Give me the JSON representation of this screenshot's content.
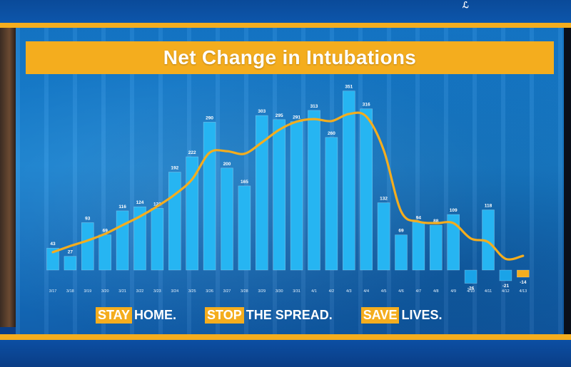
{
  "chart_data": {
    "type": "bar",
    "title": "Net Change in Intubations",
    "categories": [
      "3/17",
      "3/18",
      "3/19",
      "3/20",
      "3/21",
      "3/22",
      "3/23",
      "3/24",
      "3/25",
      "3/26",
      "3/27",
      "3/28",
      "3/29",
      "3/30",
      "3/31",
      "4/1",
      "4/2",
      "4/3",
      "4/4",
      "4/5",
      "4/6",
      "4/7",
      "4/8",
      "4/9",
      "4/10",
      "4/11",
      "4/12",
      "4/13"
    ],
    "series": [
      {
        "values": [
          43,
          27,
          93,
          69,
          116,
          124,
          121,
          192,
          222,
          290,
          200,
          165,
          303,
          295,
          291,
          313,
          260,
          351,
          316,
          132,
          69,
          94,
          88,
          109,
          -26,
          118,
          -21,
          -14
        ],
        "trend": [
          35,
          47,
          58,
          71,
          88,
          105,
          125,
          148,
          178,
          230,
          233,
          228,
          250,
          275,
          291,
          296,
          292,
          306,
          301,
          235,
          115,
          95,
          92,
          92,
          62,
          55,
          22,
          28
        ]
      }
    ],
    "ylim": [
      -30,
      360
    ],
    "colors": {
      "bar": "#26b5f2",
      "bar_negative": "#1aa3e8",
      "last_bar": "#f4ad1e",
      "trend": "#f4ad1e"
    }
  },
  "slogans": [
    {
      "highlight": "STAY",
      "rest": "HOME."
    },
    {
      "highlight": "STOP",
      "rest": "THE SPREAD."
    },
    {
      "highlight": "SAVE",
      "rest": "LIVES."
    }
  ],
  "logo_icon": "state-seal-icon"
}
